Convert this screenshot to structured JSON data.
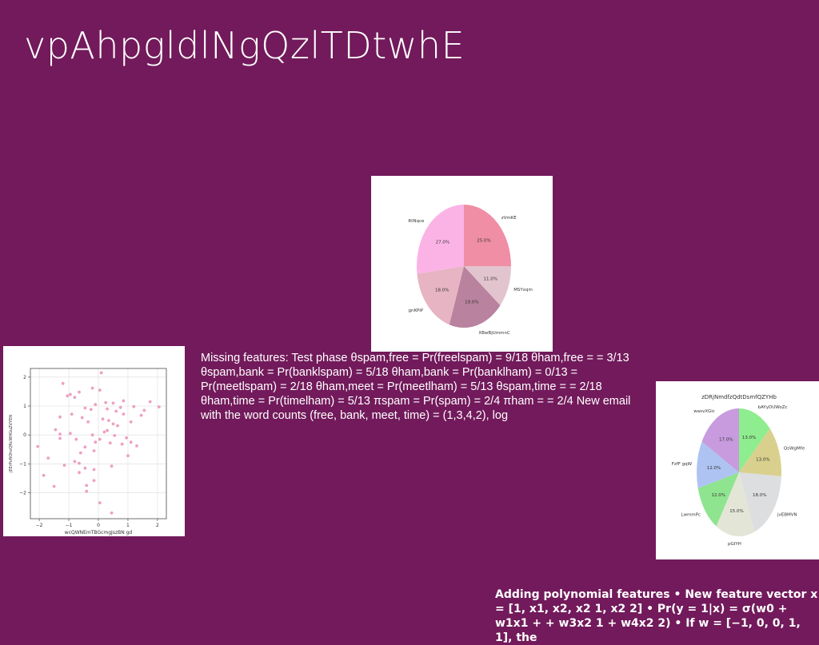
{
  "slide": {
    "title": "vpAhpgldlNgQzlTDtwhE",
    "body_text": "Missing features: Test phase θspam,free = Pr(freelspam) = 9/18 θham,free = = 3/13 θspam,bank = Pr(banklspam) = 5/18 θham,bank = Pr(banklham) = 0/13 = Pr(meetlspam) = 2/18 θham,meet = Pr(meetlham) = 5/13 θspam,time = = 2/18 θham,time = Pr(timelham) = 5/13 πspam = Pr(spam) = 2/4 πham = = 2/4 New email with the word counts (free, bank, meet, time) = (1,3,4,2), log",
    "bottom_text": "Adding polynomial features • New feature vector x = [1, x1, x2, x2 1, x2 2] • Pr(y = 1|x) = σ(w0 + w1x1 + + w3x2 1 + w4x2 2) • If w = [−1, 0, 0, 1, 1], the"
  },
  "chart_data": [
    {
      "type": "pie",
      "title": "",
      "labels": [
        "zVmKE",
        "MSYxqm",
        "XBwBjUmmnC",
        "gnKPiP",
        "RtNqce"
      ],
      "values": [
        25.0,
        11.0,
        19.0,
        18.0,
        27.0
      ],
      "value_labels": [
        "25.0%",
        "11.0%",
        "19.0%",
        "18.0%",
        "27.0%"
      ],
      "colors": [
        "#ef8ea4",
        "#e2c4cf",
        "#b9829e",
        "#e6b4c2",
        "#fbb3e6"
      ]
    },
    {
      "type": "scatter",
      "title": "",
      "xlabel": "wcQWNEmTBGcmgJszBN gd",
      "ylabel": "jEErPvROhvQRcWHGuZVYEN",
      "xlim": [
        -2.3,
        2.3
      ],
      "ylim": [
        -2.9,
        2.3
      ],
      "xticks": [
        -2,
        -1,
        0,
        1,
        2
      ],
      "yticks": [
        -2,
        -1,
        0,
        1,
        2
      ],
      "color": "#ea8fb8",
      "points": [
        [
          0.1,
          2.15
        ],
        [
          -1.2,
          1.78
        ],
        [
          -0.2,
          1.62
        ],
        [
          0.05,
          1.55
        ],
        [
          -0.65,
          1.48
        ],
        [
          -0.95,
          1.4
        ],
        [
          -0.8,
          1.3
        ],
        [
          -1.05,
          1.35
        ],
        [
          0.85,
          1.18
        ],
        [
          1.75,
          1.15
        ],
        [
          0.25,
          1.12
        ],
        [
          0.5,
          1.1
        ],
        [
          -0.1,
          1.05
        ],
        [
          0.75,
          0.95
        ],
        [
          1.2,
          0.98
        ],
        [
          2.05,
          0.97
        ],
        [
          -0.45,
          0.93
        ],
        [
          0.3,
          0.9
        ],
        [
          -0.25,
          0.88
        ],
        [
          1.55,
          0.85
        ],
        [
          0.6,
          0.82
        ],
        [
          -0.9,
          0.72
        ],
        [
          -1.3,
          0.62
        ],
        [
          0.85,
          0.72
        ],
        [
          1.45,
          0.68
        ],
        [
          -0.55,
          0.6
        ],
        [
          0.15,
          0.55
        ],
        [
          0.35,
          0.5
        ],
        [
          -0.35,
          0.45
        ],
        [
          1.1,
          0.45
        ],
        [
          0.5,
          0.38
        ],
        [
          0.65,
          0.32
        ],
        [
          -1.45,
          0.18
        ],
        [
          -1.3,
          0.03
        ],
        [
          -0.95,
          0.05
        ],
        [
          0.2,
          0.1
        ],
        [
          0.3,
          0.15
        ],
        [
          -0.2,
          0.0
        ],
        [
          0.55,
          -0.02
        ],
        [
          -1.3,
          -0.12
        ],
        [
          0.95,
          -0.1
        ],
        [
          -0.75,
          -0.15
        ],
        [
          0.05,
          -0.15
        ],
        [
          -0.1,
          -0.25
        ],
        [
          0.4,
          -0.28
        ],
        [
          0.8,
          -0.32
        ],
        [
          1.1,
          -0.25
        ],
        [
          -2.05,
          -0.4
        ],
        [
          -0.45,
          -0.42
        ],
        [
          1.3,
          -0.38
        ],
        [
          -0.15,
          -0.55
        ],
        [
          -0.6,
          -0.62
        ],
        [
          1.0,
          -0.72
        ],
        [
          -0.8,
          -0.92
        ],
        [
          -0.65,
          -0.98
        ],
        [
          -1.15,
          -1.05
        ],
        [
          0.45,
          -1.08
        ],
        [
          -0.45,
          -1.15
        ],
        [
          -0.15,
          -1.2
        ],
        [
          -0.65,
          -1.3
        ],
        [
          -1.85,
          -1.4
        ],
        [
          -0.15,
          -1.58
        ],
        [
          -1.5,
          -1.78
        ],
        [
          -0.4,
          -1.75
        ],
        [
          -0.4,
          -1.95
        ],
        [
          0.05,
          -2.35
        ],
        [
          0.45,
          -2.7
        ],
        [
          -1.7,
          -0.8
        ]
      ]
    },
    {
      "type": "pie",
      "title": "zDRjNmdfzQdtDsmfQZYHb",
      "labels": [
        "bAYyDUWoZc",
        "QsWgMfe",
        "jvEBMVN",
        "pGIYH",
        "LwmmPc",
        "FzfF gqW",
        "wasvXGic"
      ],
      "values": [
        13.0,
        13.0,
        18.0,
        15.0,
        12.0,
        12.0,
        17.0
      ],
      "value_labels": [
        "13.0%",
        "13.0%",
        "18.0%",
        "15.0%",
        "12.0%",
        "12.0%",
        "17.0%"
      ],
      "colors": [
        "#8eed8e",
        "#d9d08e",
        "#dcdee0",
        "#e3e6d6",
        "#8fe48f",
        "#aec3f2",
        "#c79bde"
      ]
    }
  ]
}
